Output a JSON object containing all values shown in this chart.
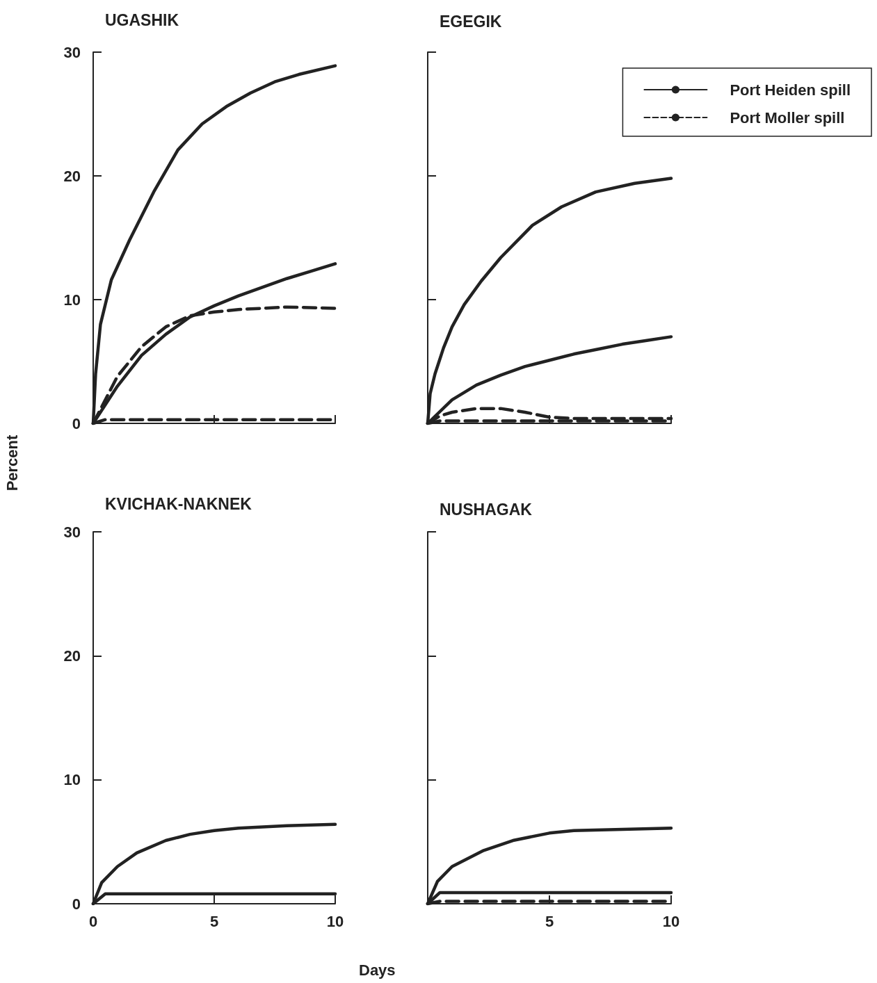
{
  "chart_data": [
    {
      "type": "line",
      "title": "UGASHIK",
      "ylabel": "Percent",
      "xlim": [
        0,
        10
      ],
      "xticks": [
        {
          "value": 0,
          "label": null
        },
        {
          "value": 5,
          "label": null
        },
        {
          "value": 10,
          "label": null
        }
      ],
      "ylim": [
        0,
        30
      ],
      "yticks": [
        0,
        10,
        20,
        30
      ],
      "tick_labels": "y",
      "grid": false,
      "legend": false,
      "series": [
        {
          "color": "#222222",
          "line_style": "solid",
          "x": [
            0,
            0.1,
            0.3,
            0.75,
            1.5,
            2.5,
            3.5,
            4.5,
            5.5,
            6.5,
            7.5,
            8.5,
            10
          ],
          "values": [
            0,
            4,
            8,
            11.6,
            14.8,
            18.7,
            22.1,
            24.2,
            25.6,
            26.7,
            27.6,
            28.2,
            28.9
          ]
        },
        {
          "color": "#222222",
          "line_style": "solid",
          "x": [
            0,
            1,
            2,
            3,
            4,
            5,
            6,
            7,
            8,
            9,
            10
          ],
          "values": [
            0,
            3,
            5.5,
            7.2,
            8.6,
            9.5,
            10.3,
            11,
            11.7,
            12.3,
            12.9
          ]
        },
        {
          "color": "#222222",
          "line_style": "dashed",
          "x": [
            0,
            1,
            2,
            3,
            4,
            5,
            6,
            7,
            8,
            10
          ],
          "values": [
            0,
            3.8,
            6.2,
            7.8,
            8.7,
            9,
            9.2,
            9.3,
            9.4,
            9.3
          ]
        },
        {
          "color": "#222222",
          "line_style": "dashed",
          "x": [
            0,
            0.5,
            10
          ],
          "values": [
            0,
            0.3,
            0.3
          ]
        }
      ]
    },
    {
      "type": "line",
      "title": "EGEGIK",
      "xlim": [
        0,
        10
      ],
      "xticks": [
        {
          "value": 0,
          "label": null
        },
        {
          "value": 5,
          "label": null
        },
        {
          "value": 10,
          "label": null
        }
      ],
      "ylim": [
        0,
        30
      ],
      "yticks": [
        0,
        10,
        20,
        30
      ],
      "tick_labels": false,
      "grid": false,
      "legend": "top right",
      "series": [
        {
          "name": "Port Heiden spill",
          "color": "#222222",
          "line_style": "solid",
          "x": [
            0,
            0.1,
            0.3,
            0.65,
            1,
            1.5,
            2.2,
            3,
            4.3,
            5.5,
            6.9,
            8.5,
            10
          ],
          "values": [
            0,
            2.4,
            4,
            6.1,
            7.8,
            9.6,
            11.5,
            13.4,
            16,
            17.5,
            18.7,
            19.4,
            19.8
          ]
        },
        {
          "color": "#222222",
          "line_style": "solid",
          "x": [
            0,
            1,
            2,
            3,
            4,
            5,
            6,
            7,
            8,
            9,
            10
          ],
          "values": [
            0,
            1.9,
            3.1,
            3.9,
            4.6,
            5.1,
            5.6,
            6,
            6.4,
            6.7,
            7
          ]
        },
        {
          "name": "Port Moller spill",
          "color": "#222222",
          "line_style": "dashed",
          "x": [
            0,
            0.5,
            1,
            2,
            3,
            4,
            5,
            6,
            10
          ],
          "values": [
            0,
            0.6,
            0.9,
            1.2,
            1.2,
            0.9,
            0.5,
            0.4,
            0.4
          ]
        },
        {
          "color": "#222222",
          "line_style": "dashed",
          "x": [
            0,
            0.5,
            10
          ],
          "values": [
            0,
            0.2,
            0.2
          ]
        }
      ]
    },
    {
      "type": "line",
      "title": "KVICHAK-NAKNEK",
      "xlabel": "Days",
      "xlim": [
        0,
        10
      ],
      "xticks": [
        0,
        5,
        10
      ],
      "ylim": [
        0,
        30
      ],
      "yticks": [
        0,
        10,
        20,
        30
      ],
      "grid": false,
      "legend": false,
      "series": [
        {
          "color": "#222222",
          "line_style": "solid",
          "x": [
            0,
            0.35,
            1,
            1.8,
            3,
            4,
            5,
            6,
            7,
            8,
            10
          ],
          "values": [
            0,
            1.7,
            3,
            4.1,
            5.1,
            5.6,
            5.9,
            6.1,
            6.2,
            6.3,
            6.4
          ]
        },
        {
          "color": "#222222",
          "line_style": "solid",
          "x": [
            0,
            0.5,
            10
          ],
          "values": [
            0,
            0.8,
            0.8
          ]
        }
      ]
    },
    {
      "type": "line",
      "title": "NUSHAGAK",
      "xlim": [
        0,
        10
      ],
      "xticks": [
        {
          "value": 0,
          "label": null
        },
        5,
        10
      ],
      "ylim": [
        0,
        30
      ],
      "yticks": [
        0,
        10,
        20,
        30
      ],
      "tick_labels": "x",
      "grid": false,
      "legend": false,
      "series": [
        {
          "color": "#222222",
          "line_style": "solid",
          "x": [
            0,
            0.4,
            1,
            2.3,
            3.5,
            5,
            6,
            8,
            10
          ],
          "values": [
            0,
            1.8,
            3,
            4.3,
            5.1,
            5.7,
            5.9,
            6,
            6.1
          ]
        },
        {
          "color": "#222222",
          "line_style": "solid",
          "x": [
            0,
            0.5,
            10
          ],
          "values": [
            0,
            0.9,
            0.9
          ]
        },
        {
          "color": "#222222",
          "line_style": "dashed",
          "x": [
            0,
            0.5,
            10
          ],
          "values": [
            0,
            0.2,
            0.2
          ]
        }
      ]
    }
  ]
}
